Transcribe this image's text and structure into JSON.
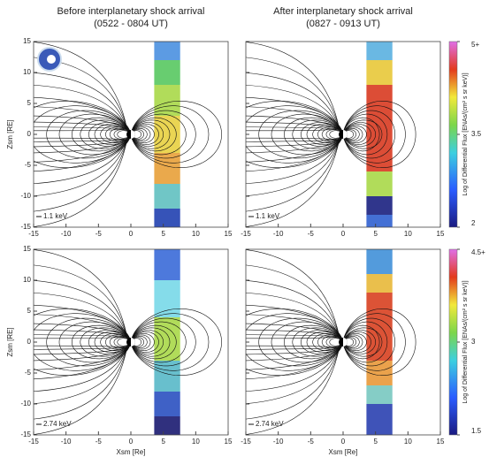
{
  "chart_data": [
    {
      "type": "field-map",
      "title": "Before interplanetary shock arrival",
      "subtitle": "(0522 - 0804 UT)",
      "annotation": "1.1 keV",
      "ylabel": "Zsm [RE]",
      "xlim": [
        -15,
        15
      ],
      "ylim": [
        -15,
        15
      ],
      "xticks": [
        -15,
        -10,
        -5,
        0,
        5,
        10,
        15
      ],
      "yticks": [
        -15,
        -10,
        -5,
        0,
        5,
        10,
        15
      ]
    },
    {
      "type": "field-map",
      "title": "After interplanetary shock arrival",
      "subtitle": "(0827 - 0913 UT)",
      "annotation": "1.1 keV",
      "xlim": [
        -15,
        15
      ],
      "ylim": [
        -15,
        15
      ],
      "xticks": [
        -15,
        -10,
        -5,
        0,
        5,
        10,
        15
      ],
      "yticks": [
        -15,
        -10,
        -5,
        0,
        5,
        10,
        15
      ],
      "colorbar": {
        "label": "Log of Differential Flux [ENAs/(cm² s sr keV)]",
        "lim": [
          2,
          5
        ],
        "ticks": [
          {
            "value": 5,
            "label": "5+"
          },
          3.5,
          2
        ]
      }
    },
    {
      "type": "field-map",
      "annotation": "2.74 keV",
      "ylabel": "Zsm [RE]",
      "xlabel": "Xsm [Re]",
      "xlim": [
        -15,
        15
      ],
      "ylim": [
        -15,
        15
      ],
      "xticks": [
        -15,
        -10,
        -5,
        0,
        5,
        10,
        15
      ],
      "yticks": [
        -15,
        -10,
        -5,
        0,
        5,
        10,
        15
      ]
    },
    {
      "type": "field-map",
      "annotation": "2.74 keV",
      "xlabel": "Xsm [Re]",
      "xlim": [
        -15,
        15
      ],
      "ylim": [
        -15,
        15
      ],
      "xticks": [
        -15,
        -10,
        -5,
        0,
        5,
        10,
        15
      ],
      "yticks": [
        -15,
        -10,
        -5,
        0,
        5,
        10,
        15
      ],
      "colorbar": {
        "label": "Log of Differential Flux [ENAs/(cm² s sr keV)]",
        "lim": [
          1.5,
          4.5
        ],
        "ticks": [
          {
            "value": 4.5,
            "label": "4.5+"
          },
          3.0,
          1.5
        ]
      }
    }
  ]
}
